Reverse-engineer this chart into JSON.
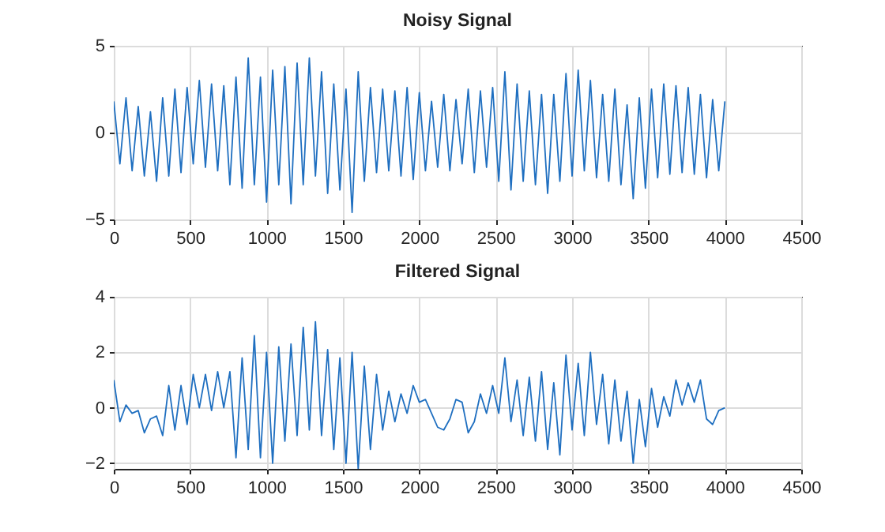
{
  "chart_data": [
    {
      "type": "line",
      "title": "Noisy Signal",
      "xlim": [
        0,
        4500
      ],
      "xticks": [
        0,
        500,
        1000,
        1500,
        2000,
        2500,
        3000,
        3500,
        4000,
        4500
      ],
      "ylim": [
        -5,
        5
      ],
      "yticks": [
        -5,
        0,
        5
      ],
      "grid": true,
      "x": [
        0,
        40,
        80,
        120,
        160,
        200,
        240,
        280,
        320,
        360,
        400,
        440,
        480,
        520,
        560,
        600,
        640,
        680,
        720,
        760,
        800,
        840,
        880,
        920,
        960,
        1000,
        1040,
        1080,
        1120,
        1160,
        1200,
        1240,
        1280,
        1320,
        1360,
        1400,
        1440,
        1480,
        1520,
        1560,
        1600,
        1640,
        1680,
        1720,
        1760,
        1800,
        1840,
        1880,
        1920,
        1960,
        2000,
        2040,
        2080,
        2120,
        2160,
        2200,
        2240,
        2280,
        2320,
        2360,
        2400,
        2440,
        2480,
        2520,
        2560,
        2600,
        2640,
        2680,
        2720,
        2760,
        2800,
        2840,
        2880,
        2920,
        2960,
        3000,
        3040,
        3080,
        3120,
        3160,
        3200,
        3240,
        3280,
        3320,
        3360,
        3400,
        3440,
        3480,
        3520,
        3560,
        3600,
        3640,
        3680,
        3720,
        3760,
        3800,
        3840,
        3880,
        3920,
        3960,
        4000
      ],
      "series": [
        {
          "color": "#1f6fc0",
          "values": [
            1.8,
            -1.8,
            2.0,
            -2.2,
            1.5,
            -2.5,
            1.2,
            -2.8,
            2.0,
            -2.5,
            2.5,
            -2.3,
            2.6,
            -1.8,
            3.0,
            -2.0,
            2.8,
            -2.2,
            2.7,
            -3.0,
            3.2,
            -3.2,
            4.3,
            -3.0,
            3.2,
            -4.0,
            3.6,
            -3.0,
            3.8,
            -4.1,
            4.0,
            -3.0,
            4.3,
            -2.5,
            3.5,
            -3.5,
            2.8,
            -3.3,
            2.5,
            -4.6,
            3.5,
            -2.8,
            2.6,
            -2.3,
            2.5,
            -2.2,
            2.4,
            -2.5,
            2.6,
            -2.7,
            2.3,
            -2.2,
            1.8,
            -2.0,
            2.2,
            -2.2,
            1.9,
            -1.8,
            2.5,
            -2.3,
            2.4,
            -2.0,
            2.6,
            -2.8,
            3.5,
            -3.3,
            2.8,
            -2.8,
            2.4,
            -3.0,
            2.2,
            -3.5,
            2.2,
            -2.8,
            3.4,
            -2.5,
            3.6,
            -2.2,
            3.0,
            -2.6,
            2.2,
            -2.8,
            2.5,
            -3.0,
            1.6,
            -3.8,
            2.0,
            -3.2,
            2.5,
            -2.6,
            2.8,
            -2.4,
            2.7,
            -2.3,
            2.6,
            -2.4,
            2.2,
            -2.6,
            1.9,
            -2.2,
            1.8
          ]
        }
      ]
    },
    {
      "type": "line",
      "title": "Filtered Signal",
      "xlim": [
        0,
        4500
      ],
      "xticks": [
        0,
        500,
        1000,
        1500,
        2000,
        2500,
        3000,
        3500,
        4000,
        4500
      ],
      "ylim": [
        -2.2,
        4
      ],
      "yticks": [
        -2,
        0,
        2,
        4
      ],
      "grid": true,
      "x": [
        0,
        40,
        80,
        120,
        160,
        200,
        240,
        280,
        320,
        360,
        400,
        440,
        480,
        520,
        560,
        600,
        640,
        680,
        720,
        760,
        800,
        840,
        880,
        920,
        960,
        1000,
        1040,
        1080,
        1120,
        1160,
        1200,
        1240,
        1280,
        1320,
        1360,
        1400,
        1440,
        1480,
        1520,
        1560,
        1600,
        1640,
        1680,
        1720,
        1760,
        1800,
        1840,
        1880,
        1920,
        1960,
        2000,
        2040,
        2080,
        2120,
        2160,
        2200,
        2240,
        2280,
        2320,
        2360,
        2400,
        2440,
        2480,
        2520,
        2560,
        2600,
        2640,
        2680,
        2720,
        2760,
        2800,
        2840,
        2880,
        2920,
        2960,
        3000,
        3040,
        3080,
        3120,
        3160,
        3200,
        3240,
        3280,
        3320,
        3360,
        3400,
        3440,
        3480,
        3520,
        3560,
        3600,
        3640,
        3680,
        3720,
        3760,
        3800,
        3840,
        3880,
        3920,
        3960,
        4000
      ],
      "series": [
        {
          "color": "#1f6fc0",
          "values": [
            1.0,
            -0.5,
            0.1,
            -0.2,
            -0.1,
            -0.9,
            -0.4,
            -0.3,
            -1.0,
            0.8,
            -0.8,
            0.8,
            -0.6,
            1.2,
            0.0,
            1.2,
            -0.1,
            1.3,
            0.0,
            1.3,
            -1.8,
            1.8,
            -1.5,
            2.6,
            -1.8,
            2.0,
            -2.0,
            2.2,
            -1.2,
            2.3,
            -1.0,
            2.9,
            -0.8,
            3.1,
            -1.0,
            2.1,
            -1.5,
            1.8,
            -2.0,
            2.0,
            -2.2,
            1.5,
            -1.5,
            1.2,
            -0.8,
            0.6,
            -0.5,
            0.5,
            -0.2,
            0.8,
            0.2,
            0.3,
            -0.2,
            -0.7,
            -0.8,
            -0.4,
            0.3,
            0.2,
            -0.9,
            -0.5,
            0.5,
            -0.2,
            0.8,
            -0.2,
            1.8,
            -0.5,
            1.0,
            -1.0,
            1.1,
            -1.2,
            1.3,
            -1.5,
            0.9,
            -1.7,
            1.9,
            -0.8,
            1.6,
            -1.0,
            2.0,
            -0.6,
            1.2,
            -1.3,
            1.0,
            -1.2,
            0.6,
            -2.0,
            0.3,
            -1.4,
            0.7,
            -0.7,
            0.4,
            -0.3,
            1.0,
            0.1,
            0.9,
            0.2,
            1.0,
            -0.4,
            -0.6,
            -0.1,
            0.0
          ]
        }
      ]
    }
  ]
}
